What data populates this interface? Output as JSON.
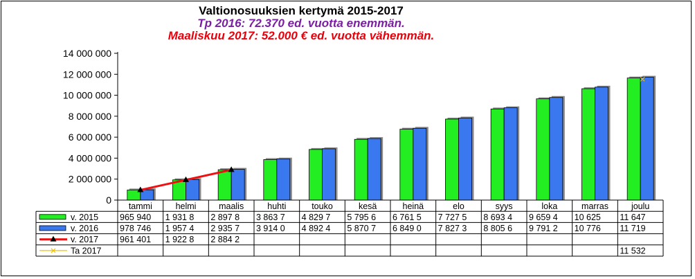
{
  "title": "Valtionosuuksien kertymä 2015-2017",
  "subtitle1": "Tp 2016: 72.370 ed. vuotta enemmän.",
  "subtitle2": "Maaliskuu  2017: 52.000 € ed. vuotta vähemmän.",
  "colors": {
    "v2015": "#22ee22",
    "v2016": "#3a78f0",
    "v2017": "#ee1111",
    "ta2017": "#f2c200",
    "subtitle1": "#7a1fa2",
    "subtitle2": "#e8000b"
  },
  "chart_data": {
    "type": "bar",
    "categories": [
      "tammi",
      "helmi",
      "maalis",
      "huhti",
      "touko",
      "kesä",
      "heinä",
      "elo",
      "syys",
      "loka",
      "marras",
      "joulu"
    ],
    "ylim": [
      0,
      14000000
    ],
    "yticks": [
      0,
      2000000,
      4000000,
      6000000,
      8000000,
      10000000,
      12000000,
      14000000
    ],
    "ytick_labels": [
      "0",
      "2 000 000",
      "4 000 000",
      "6 000 000",
      "8 000 000",
      "10 000 000",
      "12 000 000",
      "14 000 000"
    ],
    "series": [
      {
        "key": "v2015",
        "name": "v. 2015",
        "kind": "bar",
        "values": [
          965940,
          1931800,
          2897800,
          3863700,
          4829700,
          5795600,
          6761500,
          7727500,
          8693400,
          9659400,
          10625000,
          11647000
        ],
        "table": [
          "965 940",
          "1 931 8",
          "2 897 8",
          "3 863 7",
          "4 829 7",
          "5 795 6",
          "6 761 5",
          "7 727 5",
          "8 693 4",
          "9 659 4",
          "10 625",
          "11 647"
        ]
      },
      {
        "key": "v2016",
        "name": "v. 2016",
        "kind": "bar",
        "values": [
          978746,
          1957400,
          2935700,
          3914000,
          4892400,
          5870700,
          6849000,
          7827300,
          8805600,
          9791200,
          10776000,
          11719000
        ],
        "table": [
          "978 746",
          "1 957 4",
          "2 935 7",
          "3 914 0",
          "4 892 4",
          "5 870 7",
          "6 849 0",
          "7 827 3",
          "8 805 6",
          "9 791 2",
          "10 776",
          "11 719"
        ]
      },
      {
        "key": "v2017",
        "name": "v. 2017",
        "kind": "line",
        "values": [
          961401,
          1922800,
          2884200,
          null,
          null,
          null,
          null,
          null,
          null,
          null,
          null,
          null
        ],
        "table": [
          "961 401",
          "1 922 8",
          "2 884 2",
          "",
          "",
          "",
          "",
          "",
          "",
          "",
          "",
          ""
        ]
      },
      {
        "key": "ta2017",
        "name": "Ta 2017",
        "kind": "point",
        "values": [
          null,
          null,
          null,
          null,
          null,
          null,
          null,
          null,
          null,
          null,
          null,
          11532000
        ],
        "table": [
          "",
          "",
          "",
          "",
          "",
          "",
          "",
          "",
          "",
          "",
          "",
          "11 532"
        ]
      }
    ]
  }
}
